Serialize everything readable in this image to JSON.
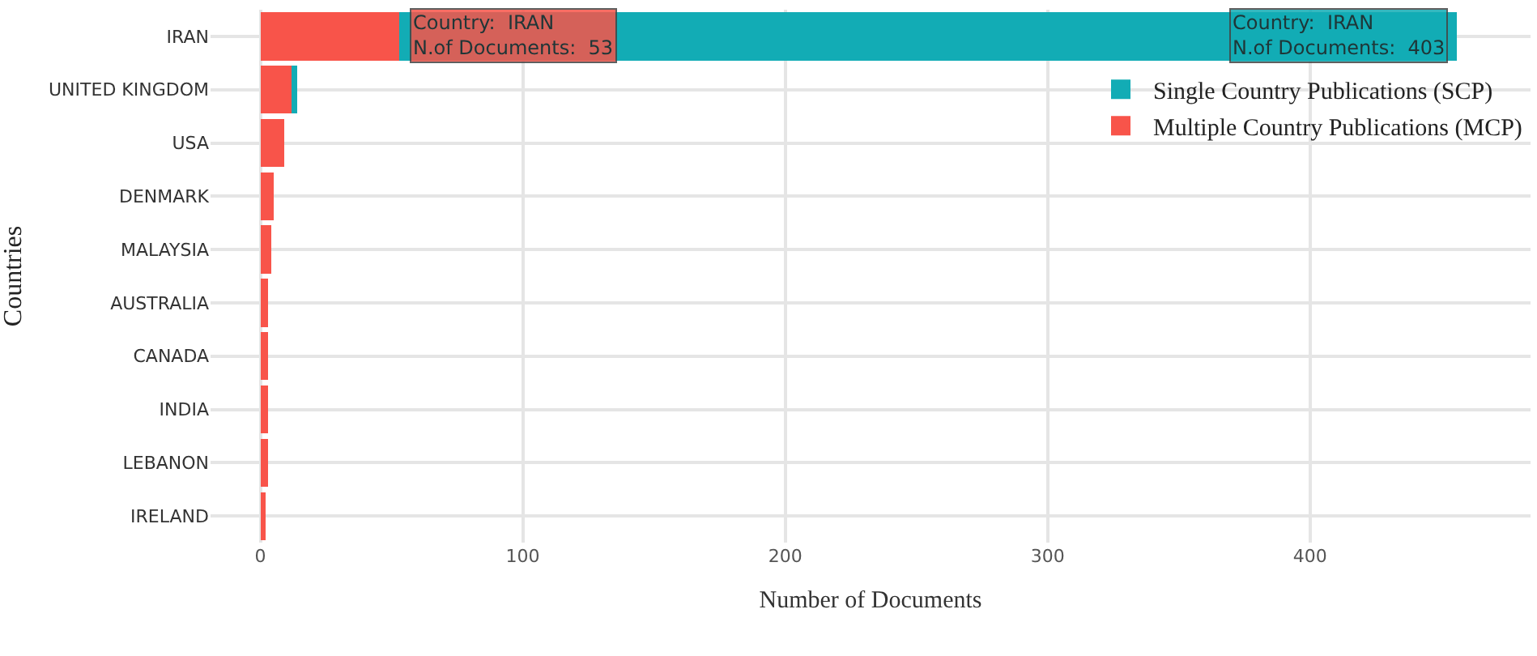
{
  "chart_data": {
    "type": "bar",
    "orientation": "horizontal",
    "stacked": true,
    "categories": [
      "IRAN",
      "UNITED KINGDOM",
      "USA",
      "DENMARK",
      "MALAYSIA",
      "AUSTRALIA",
      "CANADA",
      "INDIA",
      "LEBANON",
      "IRELAND"
    ],
    "series": [
      {
        "name": "Multiple Country Publications (MCP)",
        "color": "#f8544a",
        "values": [
          53,
          12,
          9,
          5,
          4,
          3,
          3,
          3,
          3,
          2
        ]
      },
      {
        "name": "Single Country Publications (SCP)",
        "color": "#12acb5",
        "values": [
          403,
          2,
          0,
          0,
          0,
          0,
          0,
          0,
          0,
          0
        ]
      }
    ],
    "xlabel": "Number of Documents",
    "ylabel": "Countries",
    "xlim": [
      -19,
      484
    ],
    "xticks": [
      0,
      100,
      200,
      300,
      400
    ],
    "grid": true,
    "legend": "top right",
    "annotations": [
      {
        "text": "Country:  IRAN\nN.of Documents:  53",
        "x": 53,
        "y": "IRAN"
      },
      {
        "text": "Country:  IRAN\nN.of Documents:  403",
        "x": 456,
        "y": "IRAN"
      }
    ]
  }
}
